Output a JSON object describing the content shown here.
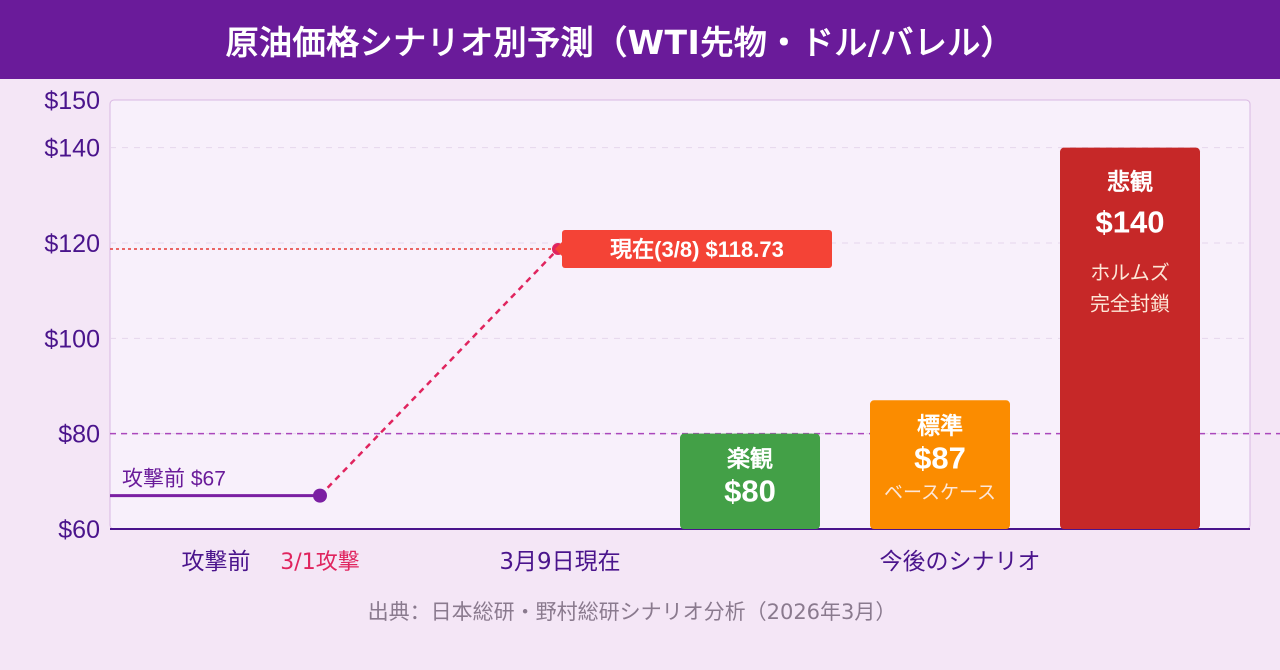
{
  "header": {
    "title": "原油価格シナリオ別予測（WTI先物・ドル/バレル）"
  },
  "chart_data": {
    "type": "bar",
    "title": "原油価格シナリオ別予測（WTI先物・ドル/バレル）",
    "ylim": [
      60,
      150
    ],
    "y_ticks": [
      {
        "value": 150,
        "label": "$150"
      },
      {
        "value": 140,
        "label": "$140"
      },
      {
        "value": 120,
        "label": "$120"
      },
      {
        "value": 100,
        "label": "$100"
      },
      {
        "value": 80,
        "label": "$80"
      },
      {
        "value": 60,
        "label": "$60"
      }
    ],
    "grid": true,
    "x_labels": {
      "before": "攻撃前",
      "attack": "3/1攻撃",
      "now": "3月9日現在",
      "future": "今後のシナリオ"
    },
    "history": [
      {
        "label": "攻撃前",
        "value": 67,
        "annotation": "攻撃前 $67"
      },
      {
        "label": "現在(3/8)",
        "value": 118.73,
        "annotation": "現在(3/8) $118.73"
      }
    ],
    "reference_lines": [
      {
        "value": 118.73,
        "color": "#e53935"
      },
      {
        "value": 80,
        "color": "#ab47bc"
      }
    ],
    "scenarios": [
      {
        "name": "楽観",
        "value": 80,
        "label": "$80",
        "note": "",
        "color": "#43a047"
      },
      {
        "name": "標準",
        "value": 87,
        "label": "$87",
        "note": "ベースケース",
        "color": "#fb8c00"
      },
      {
        "name": "悲観",
        "value": 140,
        "label": "$140",
        "note": "ホルムズ\n完全封鎖",
        "color": "#c62828"
      }
    ],
    "colors": {
      "axis": "#4a148c",
      "history_line": "#7b1fa2",
      "trend": "#e0245e",
      "now_badge": "#f44336",
      "attack_label": "#e0245e"
    }
  },
  "source": "出典：日本総研・野村総研シナリオ分析（2026年3月）"
}
